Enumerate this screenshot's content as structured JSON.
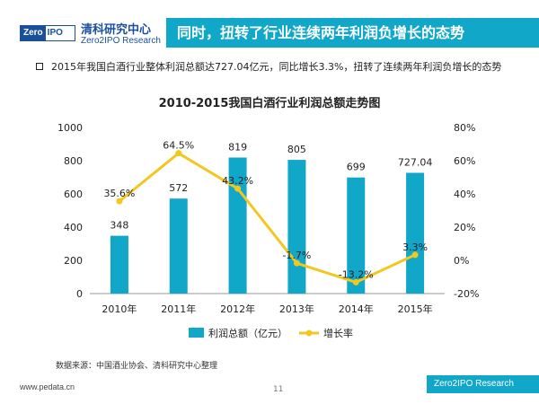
{
  "header": {
    "logo_left": "Zero",
    "logo_right": "IPO",
    "brand_cn": "清科研究中心",
    "brand_en": "Zero2IPO Research",
    "title": "同时，扭转了行业连续两年利润负增长的态势"
  },
  "bullet": "2015年我国白酒行业整体利润总额达727.04亿元，同比增长3.3%，扭转了连续两年利润负增长的态势",
  "chart_data": {
    "type": "bar+line",
    "title": "2010-2015我国白酒行业利润总额走势图",
    "categories": [
      "2010年",
      "2011年",
      "2012年",
      "2013年",
      "2014年",
      "2015年"
    ],
    "series": [
      {
        "name": "利润总额（亿元）",
        "kind": "bar",
        "axis": "left",
        "values": [
          348,
          572,
          819,
          805,
          699,
          727.04
        ],
        "labels": [
          "348",
          "572",
          "819",
          "805",
          "699",
          "727.04"
        ]
      },
      {
        "name": "增长率",
        "kind": "line",
        "axis": "right",
        "values": [
          35.6,
          64.5,
          43.2,
          -1.7,
          -13.2,
          3.3
        ],
        "labels": [
          "35.6%",
          "64.5%",
          "43.2%",
          "-1.7%",
          "-13.2%",
          "3.3%"
        ]
      }
    ],
    "y_left": {
      "min": 0,
      "max": 1000,
      "ticks": [
        0,
        200,
        400,
        600,
        800,
        1000
      ]
    },
    "y_right": {
      "min": -20,
      "max": 80,
      "ticks": [
        "-20%",
        "0%",
        "20%",
        "40%",
        "60%",
        "80%"
      ]
    },
    "legend_position": "bottom",
    "colors": {
      "bar": "#11a7c8",
      "line": "#f2c71f"
    }
  },
  "source": "数据来源：中国酒业协会、清科研究中心整理",
  "footer": {
    "url": "www.pedata.cn",
    "page": "11",
    "brand": "Zero2IPO Research"
  }
}
